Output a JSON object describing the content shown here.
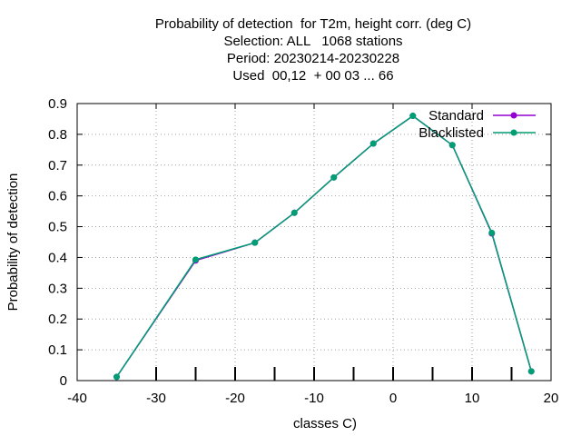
{
  "chart_data": {
    "type": "line",
    "title_lines": [
      "Probability of detection  for T2m, height corr. (deg C)",
      "Selection: ALL   1068 stations",
      "Period: 20230214-20230228",
      "Used  00,12  + 00 03 ... 66"
    ],
    "xlabel": "classes C)",
    "ylabel": "Probability of detection",
    "xlim": [
      -40,
      20
    ],
    "ylim": [
      0,
      0.9
    ],
    "x_ticks": [
      -40,
      -30,
      -20,
      -10,
      0,
      10,
      20
    ],
    "y_ticks": [
      0,
      0.1,
      0.2,
      0.3,
      0.4,
      0.5,
      0.6,
      0.7,
      0.8,
      0.9
    ],
    "grid": true,
    "legend_position": "top-right",
    "x": [
      -35,
      -25,
      -17.5,
      -12.5,
      -7.5,
      -2.5,
      2.5,
      7.5,
      12.5,
      17.5
    ],
    "series": [
      {
        "name": "Standard",
        "color": "#9400d3",
        "values": [
          0.012,
          0.39,
          0.448,
          0.545,
          0.66,
          0.77,
          0.86,
          0.765,
          0.478,
          0.03
        ]
      },
      {
        "name": "Blacklisted",
        "color": "#009e73",
        "values": [
          0.012,
          0.393,
          0.448,
          0.545,
          0.66,
          0.77,
          0.86,
          0.765,
          0.48,
          0.03
        ]
      }
    ]
  }
}
